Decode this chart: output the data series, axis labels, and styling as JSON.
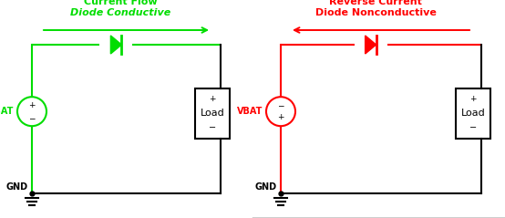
{
  "bg_color": "#ffffff",
  "green": "#00ee00",
  "red": "#ff0000",
  "black": "#000000",
  "dark_gold": "#b8860b",
  "left_circuit": {
    "color": "#00dd00",
    "title_line1": "Current Flow",
    "title_line2": "Diode Conductive",
    "arrow_direction": "right",
    "battery_plus_top": true,
    "diode_direction": "right"
  },
  "right_circuit": {
    "color": "#ff0000",
    "title_line1": "Reverse Current",
    "title_line2": "Diode Nonconductive",
    "arrow_direction": "left",
    "battery_plus_top": false,
    "diode_direction": "right"
  },
  "gnd_label": "GND",
  "vbat_label": "VBAT",
  "load_label": "Load",
  "lw": 1.5
}
